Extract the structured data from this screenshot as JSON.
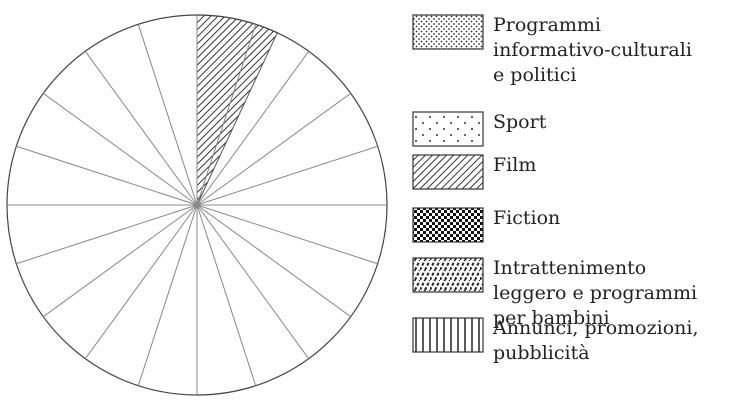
{
  "legend": [
    {
      "pattern": "dense-dots",
      "lines": [
        "Programmi",
        "informativo-culturali",
        "e politici"
      ]
    },
    {
      "pattern": "sparse-dots",
      "lines": [
        "Sport"
      ]
    },
    {
      "pattern": "hatch",
      "lines": [
        "Film"
      ]
    },
    {
      "pattern": "checker",
      "lines": [
        "Fiction"
      ]
    },
    {
      "pattern": "zigzag",
      "lines": [
        "Intrattenimento",
        "leggero e programmi",
        "per bambini"
      ]
    },
    {
      "pattern": "vertical",
      "lines": [
        "Annunci, promozioni,",
        "pubblicità"
      ]
    }
  ],
  "pie": {
    "divisions": 20,
    "filled": [
      {
        "legend_index": 2,
        "start_deg": 0,
        "end_deg": 25
      }
    ]
  }
}
